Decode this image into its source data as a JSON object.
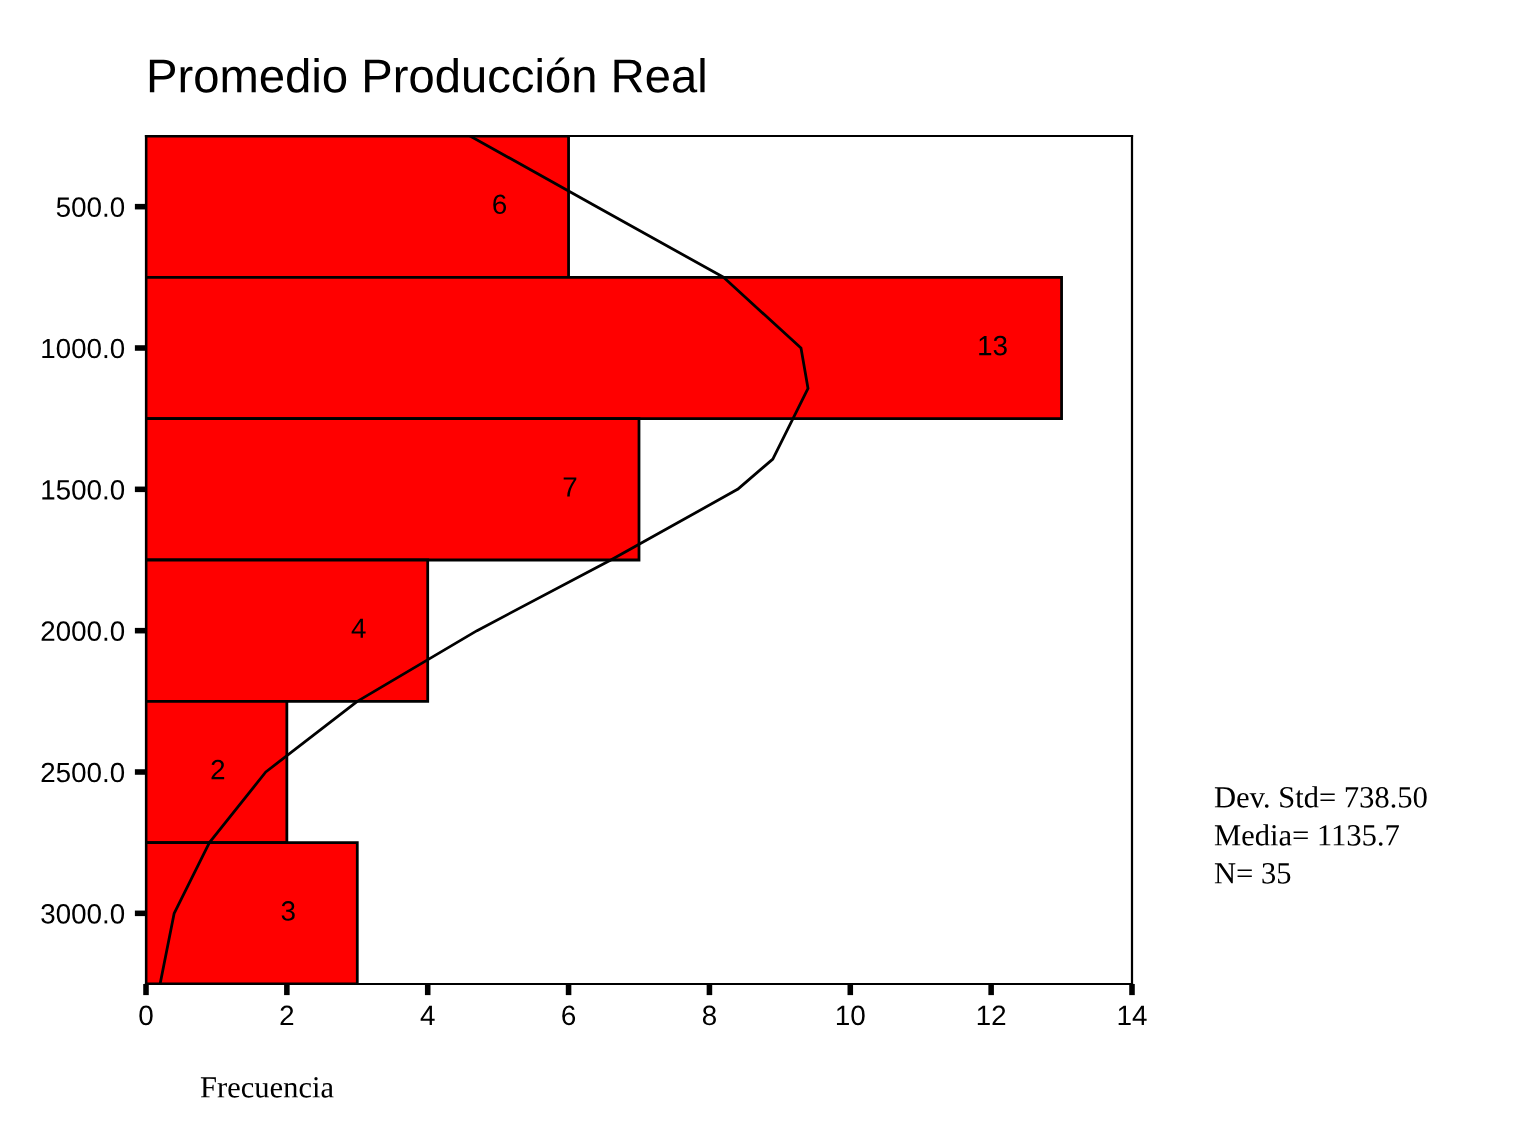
{
  "chart_data": {
    "type": "histogram",
    "orientation": "horizontal",
    "title": "Promedio Producción Real",
    "xlabel": "Frecuencia",
    "bins": [
      250,
      750,
      1250,
      1750,
      2250,
      2750,
      3250
    ],
    "values": [
      6,
      13,
      7,
      4,
      2,
      3
    ],
    "color": "#ff0000",
    "value_labels": [
      "6",
      "13",
      "7",
      "4",
      "2",
      "3"
    ],
    "series": [
      {
        "type": "line",
        "color": "#000000",
        "x": [
          250,
          500,
          750,
          1000,
          1143,
          1393,
          1500,
          1750,
          2000,
          2250,
          2500,
          2750,
          3000,
          3250
        ],
        "values": [
          4.6,
          6.4,
          8.2,
          9.3,
          9.4,
          8.9,
          8.4,
          6.6,
          4.7,
          3.0,
          1.7,
          0.9,
          0.4,
          0.2
        ]
      }
    ],
    "xlim": [
      0,
      14
    ],
    "xticks": [
      0,
      2,
      4,
      6,
      8,
      10,
      12,
      14
    ],
    "ylim": [
      3250,
      250
    ],
    "yticks": [
      {
        "value": 500,
        "label": "500.0"
      },
      {
        "value": 1000,
        "label": "1000.0"
      },
      {
        "value": 1500,
        "label": "1500.0"
      },
      {
        "value": 2000,
        "label": "2000.0"
      },
      {
        "value": 2500,
        "label": "2500.0"
      },
      {
        "value": 3000,
        "label": "3000.0"
      }
    ],
    "grid": false,
    "legend": false,
    "annotations": [
      "Dev. Std= 738.50",
      "Media= 1135.7",
      "N= 35"
    ]
  }
}
